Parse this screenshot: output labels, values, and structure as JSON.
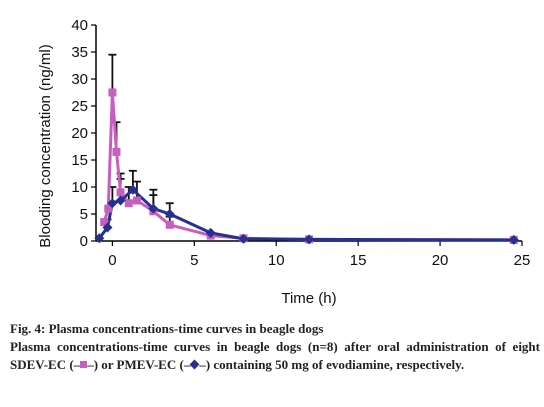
{
  "chart_data": {
    "type": "line",
    "xlabel": "Time (h)",
    "ylabel": "Blooding concentration (ng/ml)",
    "xlim": [
      -1,
      25
    ],
    "ylim": [
      0,
      40
    ],
    "x_ticks": [
      0,
      5,
      10,
      15,
      20,
      25
    ],
    "y_ticks": [
      0,
      5,
      10,
      15,
      20,
      25,
      30,
      35,
      40
    ],
    "grid": false,
    "legend": "none",
    "series": [
      {
        "name": "SDEV-EC",
        "color": "#c65fc0",
        "marker": "square",
        "x": [
          -0.5,
          -0.25,
          0,
          0.25,
          0.5,
          1,
          1.5,
          2.5,
          3.5,
          6,
          8,
          12,
          24.5
        ],
        "y": [
          3.5,
          6,
          27.5,
          16.5,
          9,
          7,
          7.5,
          5.5,
          3,
          1,
          0.5,
          0.3,
          0.2
        ],
        "err": [
          0,
          0,
          7,
          5.5,
          3.5,
          3,
          3.5,
          3,
          1.5,
          0,
          0,
          0,
          0
        ]
      },
      {
        "name": "PMEV-EC",
        "color": "#24318f",
        "marker": "diamond",
        "x": [
          -0.8,
          -0.3,
          0,
          0.5,
          1.25,
          2.5,
          3.5,
          6,
          8,
          12,
          24.5
        ],
        "y": [
          0.5,
          2.5,
          7,
          7.5,
          9.5,
          6,
          5,
          1.5,
          0.4,
          0.3,
          0.2
        ],
        "err": [
          0,
          1.5,
          3,
          4,
          3.5,
          3.5,
          2,
          0,
          0,
          0,
          0
        ]
      }
    ]
  },
  "caption": {
    "title": "Fig. 4: Plasma concentrations-time curves in beagle dogs",
    "body_1": "Plasma concentrations-time curves in beagle dogs (n=8) after oral administration of eight SDEV-EC (–",
    "body_2": "–) or PMEV-EC (–",
    "body_3": "–) containing 50 mg of evodiamine, respectively."
  }
}
